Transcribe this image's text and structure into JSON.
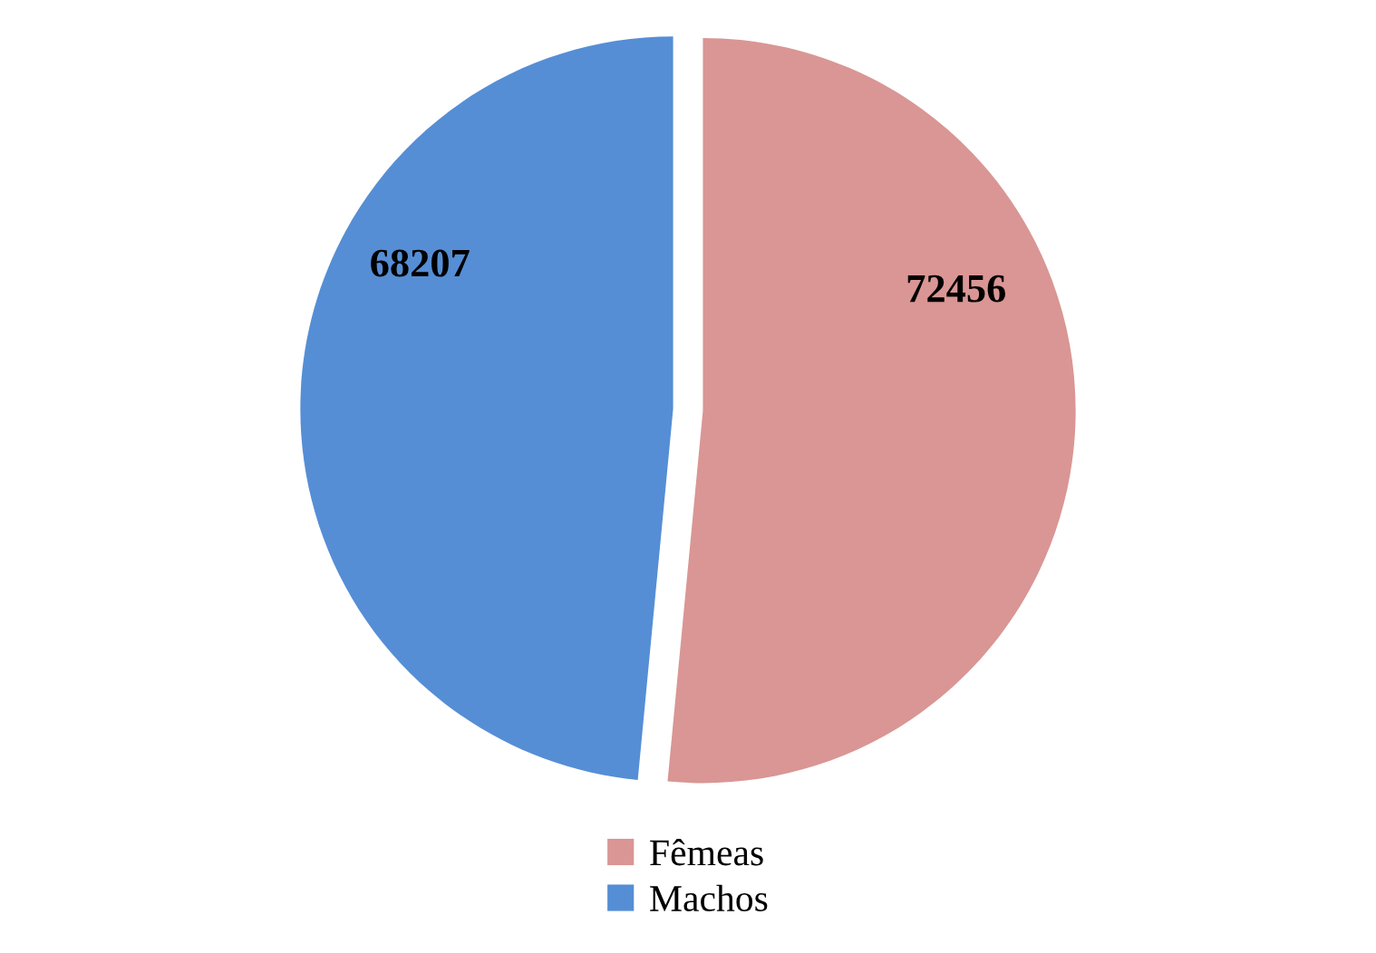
{
  "chart_data": {
    "type": "pie",
    "categories": [
      "Fêmeas",
      "Machos"
    ],
    "values": [
      72456,
      68207
    ],
    "colors": [
      "#d99694",
      "#558ed5"
    ],
    "data_labels": true,
    "legend": "bottom"
  }
}
